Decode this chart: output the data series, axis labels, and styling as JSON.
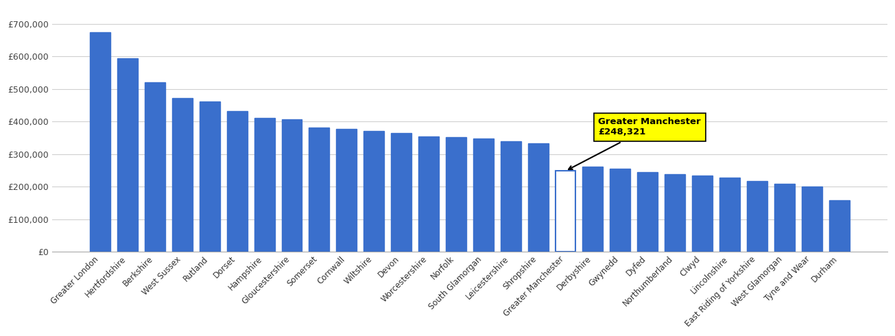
{
  "categories": [
    "Greater London",
    "Hertfordshire",
    "Berkshire",
    "West Sussex",
    "Rutland",
    "Dorset",
    "Hampshire",
    "Gloucestershire",
    "Somerset",
    "Cornwall",
    "Wiltshire",
    "Devon",
    "Worcestershire",
    "Norfolk",
    "South Glamorgan",
    "Leicestershire",
    "Shropshire",
    "Greater Manchester",
    "Derbyshire",
    "Gwynedd",
    "Dyfed",
    "Northumberland",
    "Clwyd",
    "Lincolnshire",
    "East Riding of Yorkshire",
    "West Glamorgan",
    "Tyne and Wear",
    "Durham"
  ],
  "values": [
    675000,
    595000,
    520000,
    473000,
    462000,
    433000,
    412000,
    408000,
    382000,
    378000,
    372000,
    365000,
    355000,
    352000,
    347000,
    340000,
    333000,
    248321,
    262000,
    255000,
    245000,
    238000,
    235000,
    228000,
    218000,
    210000,
    200000,
    158000
  ],
  "highlight_index": 17,
  "bar_color": "#3a6fcc",
  "annotation_text": "Greater Manchester\n£248,321",
  "annotation_bg": "#ffff00",
  "ylim": [
    0,
    750000
  ],
  "yticks": [
    0,
    100000,
    200000,
    300000,
    400000,
    500000,
    600000,
    700000
  ],
  "ytick_labels": [
    "£0",
    "£100,000",
    "£200,000",
    "£300,000",
    "£400,000",
    "£500,000",
    "£600,000",
    "£700,000"
  ],
  "background_color": "#ffffff",
  "grid_color": "#d0d0d0"
}
